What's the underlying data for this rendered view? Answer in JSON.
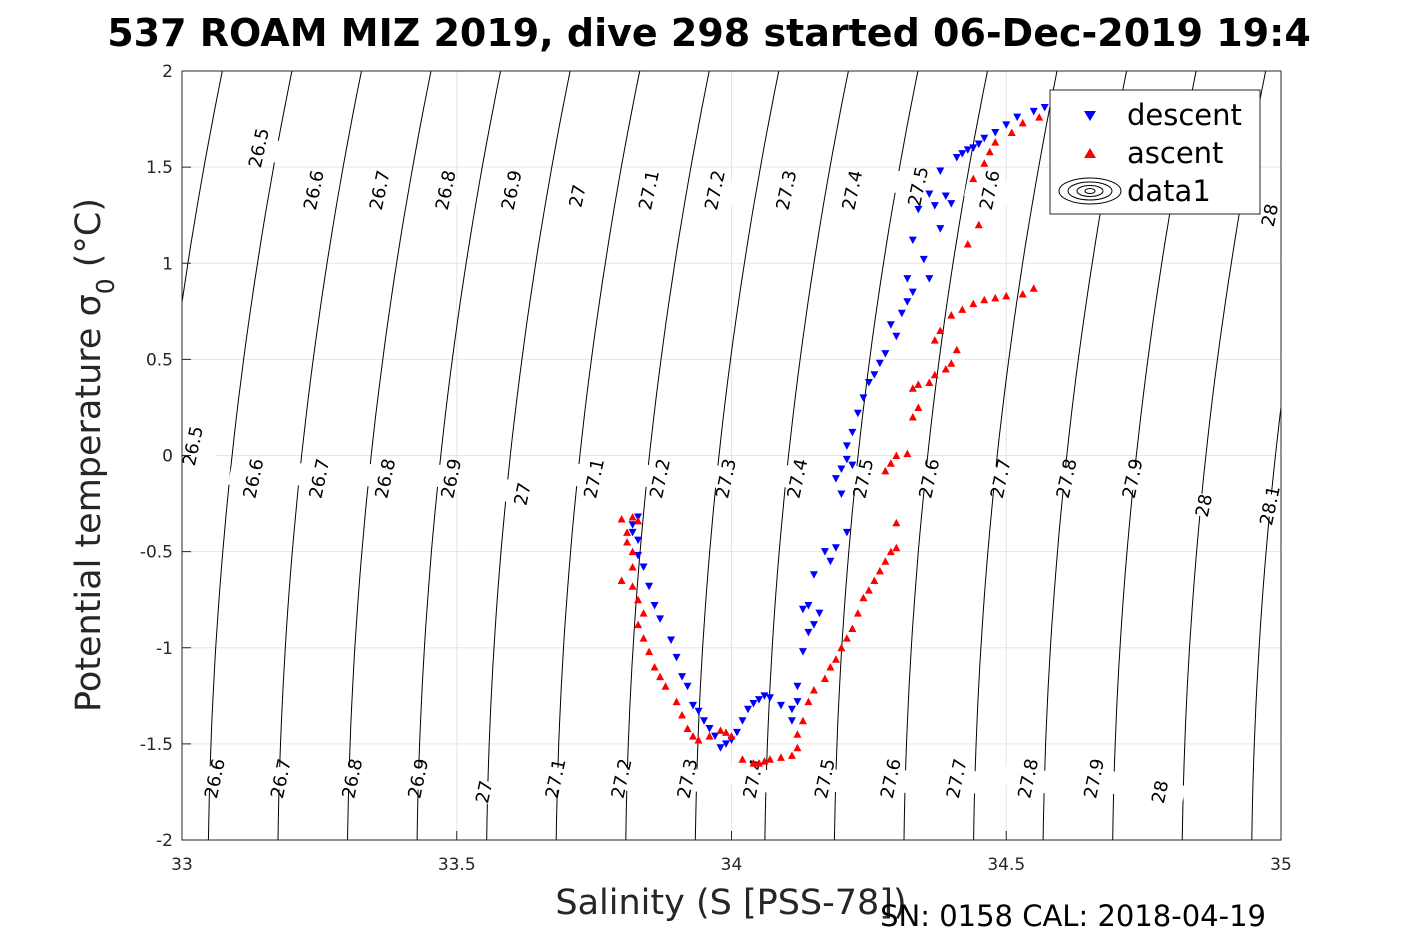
{
  "chart_data": {
    "type": "scatter",
    "title": "537 ROAM MIZ 2019, dive 298 started 06-Dec-2019 19:4",
    "xlabel": "Salinity (S [PSS-78])",
    "ylabel": "Potential temperature σ",
    "ylabel_subscript": "0",
    "ylabel_unit": " (°C)",
    "footer": "SN: 0158  CAL: 2018-04-19",
    "xlim": [
      33,
      35
    ],
    "ylim": [
      -2,
      2
    ],
    "xticks": [
      33,
      33.5,
      34,
      34.5,
      35
    ],
    "xtick_labels": [
      "33",
      "33.5",
      "34",
      "34.5",
      "35"
    ],
    "yticks": [
      -2,
      -1.5,
      -1,
      -0.5,
      0,
      0.5,
      1,
      1.5,
      2
    ],
    "ytick_labels": [
      "-2",
      "-1.5",
      "-1",
      "-0.5",
      "0",
      "0.5",
      "1",
      "1.5",
      "2"
    ],
    "grid": true,
    "legend": {
      "position": "top-right",
      "entries": [
        {
          "label": "descent",
          "color": "#0000ff",
          "marker": "triangle-down"
        },
        {
          "label": "ascent",
          "color": "#ff0000",
          "marker": "triangle-up"
        },
        {
          "label": "data1",
          "marker": "contour"
        }
      ]
    },
    "isopycnals": {
      "levels": [
        26.5,
        26.6,
        26.7,
        26.8,
        26.9,
        27,
        27.1,
        27.2,
        27.3,
        27.4,
        27.5,
        27.6,
        27.7,
        27.8,
        27.9,
        28,
        28.1
      ],
      "inline_labels": [
        {
          "text": "26.5",
          "x": 33.14,
          "y": 1.6
        },
        {
          "text": "26.6",
          "x": 33.24,
          "y": 1.38
        },
        {
          "text": "26.7",
          "x": 33.36,
          "y": 1.38
        },
        {
          "text": "26.8",
          "x": 33.48,
          "y": 1.38
        },
        {
          "text": "26.9",
          "x": 33.6,
          "y": 1.38
        },
        {
          "text": "27",
          "x": 33.72,
          "y": 1.35
        },
        {
          "text": "27.1",
          "x": 33.85,
          "y": 1.38
        },
        {
          "text": "27.2",
          "x": 33.97,
          "y": 1.38
        },
        {
          "text": "27.3",
          "x": 34.1,
          "y": 1.38
        },
        {
          "text": "27.4",
          "x": 34.22,
          "y": 1.38
        },
        {
          "text": "27.5",
          "x": 34.34,
          "y": 1.4
        },
        {
          "text": "27.6",
          "x": 34.47,
          "y": 1.38
        },
        {
          "text": "28",
          "x": 34.98,
          "y": 1.25
        },
        {
          "text": "26.5",
          "x": 33.02,
          "y": 0.05
        },
        {
          "text": "26.6",
          "x": 33.13,
          "y": -0.12
        },
        {
          "text": "26.7",
          "x": 33.25,
          "y": -0.12
        },
        {
          "text": "26.8",
          "x": 33.37,
          "y": -0.12
        },
        {
          "text": "26.9",
          "x": 33.49,
          "y": -0.12
        },
        {
          "text": "27",
          "x": 33.62,
          "y": -0.2
        },
        {
          "text": "27.1",
          "x": 33.75,
          "y": -0.12
        },
        {
          "text": "27.2",
          "x": 33.87,
          "y": -0.12
        },
        {
          "text": "27.3",
          "x": 33.99,
          "y": -0.12
        },
        {
          "text": "27.4",
          "x": 34.12,
          "y": -0.12
        },
        {
          "text": "27.5",
          "x": 34.24,
          "y": -0.12
        },
        {
          "text": "27.6",
          "x": 34.36,
          "y": -0.12
        },
        {
          "text": "27.7",
          "x": 34.49,
          "y": -0.12
        },
        {
          "text": "27.8",
          "x": 34.61,
          "y": -0.12
        },
        {
          "text": "27.9",
          "x": 34.73,
          "y": -0.12
        },
        {
          "text": "28",
          "x": 34.86,
          "y": -0.26
        },
        {
          "text": "28.1",
          "x": 34.98,
          "y": -0.26
        },
        {
          "text": "26.6",
          "x": 33.06,
          "y": -1.68
        },
        {
          "text": "26.7",
          "x": 33.18,
          "y": -1.68
        },
        {
          "text": "26.8",
          "x": 33.31,
          "y": -1.68
        },
        {
          "text": "26.9",
          "x": 33.43,
          "y": -1.68
        },
        {
          "text": "27",
          "x": 33.55,
          "y": -1.75
        },
        {
          "text": "27.1",
          "x": 33.68,
          "y": -1.68
        },
        {
          "text": "27.2",
          "x": 33.8,
          "y": -1.68
        },
        {
          "text": "27.3",
          "x": 33.92,
          "y": -1.68
        },
        {
          "text": "27.4",
          "x": 34.04,
          "y": -1.68
        },
        {
          "text": "27.5",
          "x": 34.17,
          "y": -1.68
        },
        {
          "text": "27.6",
          "x": 34.29,
          "y": -1.68
        },
        {
          "text": "27.7",
          "x": 34.41,
          "y": -1.68
        },
        {
          "text": "27.8",
          "x": 34.54,
          "y": -1.68
        },
        {
          "text": "27.9",
          "x": 34.66,
          "y": -1.68
        },
        {
          "text": "28",
          "x": 34.78,
          "y": -1.75
        }
      ]
    },
    "series": [
      {
        "name": "descent",
        "color": "#0000ff",
        "marker": "triangle-down",
        "points": [
          [
            34.45,
            1.62
          ],
          [
            34.43,
            1.59
          ],
          [
            34.42,
            1.57
          ],
          [
            34.41,
            1.55
          ],
          [
            34.48,
            1.68
          ],
          [
            34.5,
            1.72
          ],
          [
            34.52,
            1.76
          ],
          [
            34.55,
            1.79
          ],
          [
            34.57,
            1.81
          ],
          [
            34.6,
            1.82
          ],
          [
            34.62,
            1.82
          ],
          [
            34.64,
            1.8
          ],
          [
            34.46,
            1.65
          ],
          [
            34.44,
            1.6
          ],
          [
            34.38,
            1.48
          ],
          [
            34.36,
            1.36
          ],
          [
            34.39,
            1.35
          ],
          [
            34.37,
            1.3
          ],
          [
            34.4,
            1.31
          ],
          [
            34.34,
            1.28
          ],
          [
            34.33,
            1.12
          ],
          [
            34.38,
            1.18
          ],
          [
            34.35,
            1.02
          ],
          [
            34.32,
            0.92
          ],
          [
            34.36,
            0.92
          ],
          [
            34.33,
            0.85
          ],
          [
            34.32,
            0.8
          ],
          [
            34.31,
            0.74
          ],
          [
            34.29,
            0.68
          ],
          [
            34.3,
            0.62
          ],
          [
            34.28,
            0.53
          ],
          [
            34.27,
            0.48
          ],
          [
            34.26,
            0.42
          ],
          [
            34.25,
            0.38
          ],
          [
            34.24,
            0.3
          ],
          [
            34.23,
            0.22
          ],
          [
            34.22,
            0.12
          ],
          [
            34.21,
            0.05
          ],
          [
            34.21,
            -0.02
          ],
          [
            34.2,
            -0.07
          ],
          [
            34.19,
            -0.12
          ],
          [
            34.2,
            -0.2
          ],
          [
            34.22,
            -0.05
          ],
          [
            34.21,
            -0.4
          ],
          [
            34.19,
            -0.48
          ],
          [
            34.18,
            -0.55
          ],
          [
            34.17,
            -0.5
          ],
          [
            34.15,
            -0.62
          ],
          [
            34.14,
            -0.78
          ],
          [
            34.13,
            -0.8
          ],
          [
            34.16,
            -0.82
          ],
          [
            34.15,
            -0.88
          ],
          [
            34.14,
            -0.92
          ],
          [
            34.13,
            -1.02
          ],
          [
            34.12,
            -1.2
          ],
          [
            34.12,
            -1.28
          ],
          [
            34.11,
            -1.32
          ],
          [
            34.11,
            -1.38
          ],
          [
            34.09,
            -1.3
          ],
          [
            34.07,
            -1.26
          ],
          [
            34.06,
            -1.25
          ],
          [
            34.05,
            -1.27
          ],
          [
            34.04,
            -1.29
          ],
          [
            34.03,
            -1.32
          ],
          [
            34.02,
            -1.38
          ],
          [
            34.01,
            -1.44
          ],
          [
            34.0,
            -1.48
          ],
          [
            33.99,
            -1.5
          ],
          [
            33.98,
            -1.52
          ],
          [
            33.97,
            -1.46
          ],
          [
            33.96,
            -1.42
          ],
          [
            33.95,
            -1.38
          ],
          [
            33.94,
            -1.33
          ],
          [
            33.93,
            -1.3
          ],
          [
            33.92,
            -1.2
          ],
          [
            33.91,
            -1.15
          ],
          [
            33.9,
            -1.05
          ],
          [
            33.89,
            -0.96
          ],
          [
            33.87,
            -0.85
          ],
          [
            33.86,
            -0.78
          ],
          [
            33.85,
            -0.68
          ],
          [
            33.84,
            -0.58
          ],
          [
            33.83,
            -0.52
          ],
          [
            33.83,
            -0.44
          ],
          [
            33.82,
            -0.4
          ],
          [
            33.82,
            -0.36
          ],
          [
            33.83,
            -0.32
          ]
        ]
      },
      {
        "name": "ascent",
        "color": "#ff0000",
        "marker": "triangle-up",
        "points": [
          [
            34.51,
            1.68
          ],
          [
            34.53,
            1.73
          ],
          [
            34.56,
            1.76
          ],
          [
            34.59,
            1.78
          ],
          [
            34.61,
            1.79
          ],
          [
            34.48,
            1.63
          ],
          [
            34.47,
            1.58
          ],
          [
            34.46,
            1.52
          ],
          [
            34.44,
            1.44
          ],
          [
            34.43,
            1.1
          ],
          [
            34.45,
            1.2
          ],
          [
            34.55,
            0.87
          ],
          [
            34.53,
            0.84
          ],
          [
            34.5,
            0.83
          ],
          [
            34.48,
            0.82
          ],
          [
            34.46,
            0.81
          ],
          [
            34.44,
            0.79
          ],
          [
            34.42,
            0.76
          ],
          [
            34.4,
            0.73
          ],
          [
            34.38,
            0.65
          ],
          [
            34.37,
            0.6
          ],
          [
            34.41,
            0.55
          ],
          [
            34.4,
            0.48
          ],
          [
            34.39,
            0.45
          ],
          [
            34.37,
            0.42
          ],
          [
            34.36,
            0.38
          ],
          [
            34.34,
            0.37
          ],
          [
            34.33,
            0.35
          ],
          [
            34.34,
            0.25
          ],
          [
            34.33,
            0.2
          ],
          [
            34.32,
            0.01
          ],
          [
            34.3,
            0.0
          ],
          [
            34.29,
            -0.04
          ],
          [
            34.28,
            -0.08
          ],
          [
            34.3,
            -0.35
          ],
          [
            34.3,
            -0.48
          ],
          [
            34.29,
            -0.5
          ],
          [
            34.28,
            -0.55
          ],
          [
            34.27,
            -0.6
          ],
          [
            34.26,
            -0.65
          ],
          [
            34.25,
            -0.7
          ],
          [
            34.24,
            -0.74
          ],
          [
            34.23,
            -0.82
          ],
          [
            34.22,
            -0.9
          ],
          [
            34.21,
            -0.95
          ],
          [
            34.2,
            -1.0
          ],
          [
            34.19,
            -1.06
          ],
          [
            34.18,
            -1.1
          ],
          [
            34.17,
            -1.16
          ],
          [
            34.15,
            -1.22
          ],
          [
            34.14,
            -1.28
          ],
          [
            34.13,
            -1.38
          ],
          [
            34.12,
            -1.45
          ],
          [
            34.12,
            -1.52
          ],
          [
            34.11,
            -1.56
          ],
          [
            34.09,
            -1.57
          ],
          [
            34.07,
            -1.58
          ],
          [
            34.06,
            -1.59
          ],
          [
            34.05,
            -1.6
          ],
          [
            34.04,
            -1.6
          ],
          [
            34.02,
            -1.58
          ],
          [
            34.0,
            -1.46
          ],
          [
            33.99,
            -1.44
          ],
          [
            33.98,
            -1.43
          ],
          [
            33.96,
            -1.46
          ],
          [
            33.94,
            -1.48
          ],
          [
            33.93,
            -1.46
          ],
          [
            33.92,
            -1.42
          ],
          [
            33.91,
            -1.35
          ],
          [
            33.9,
            -1.28
          ],
          [
            33.88,
            -1.2
          ],
          [
            33.87,
            -1.15
          ],
          [
            33.86,
            -1.1
          ],
          [
            33.85,
            -1.02
          ],
          [
            33.84,
            -0.95
          ],
          [
            33.83,
            -0.88
          ],
          [
            33.84,
            -0.82
          ],
          [
            33.83,
            -0.75
          ],
          [
            33.82,
            -0.68
          ],
          [
            33.8,
            -0.65
          ],
          [
            33.82,
            -0.58
          ],
          [
            33.82,
            -0.5
          ],
          [
            33.81,
            -0.45
          ],
          [
            33.81,
            -0.4
          ],
          [
            33.8,
            -0.33
          ],
          [
            33.82,
            -0.32
          ],
          [
            33.83,
            -0.34
          ]
        ]
      }
    ]
  }
}
